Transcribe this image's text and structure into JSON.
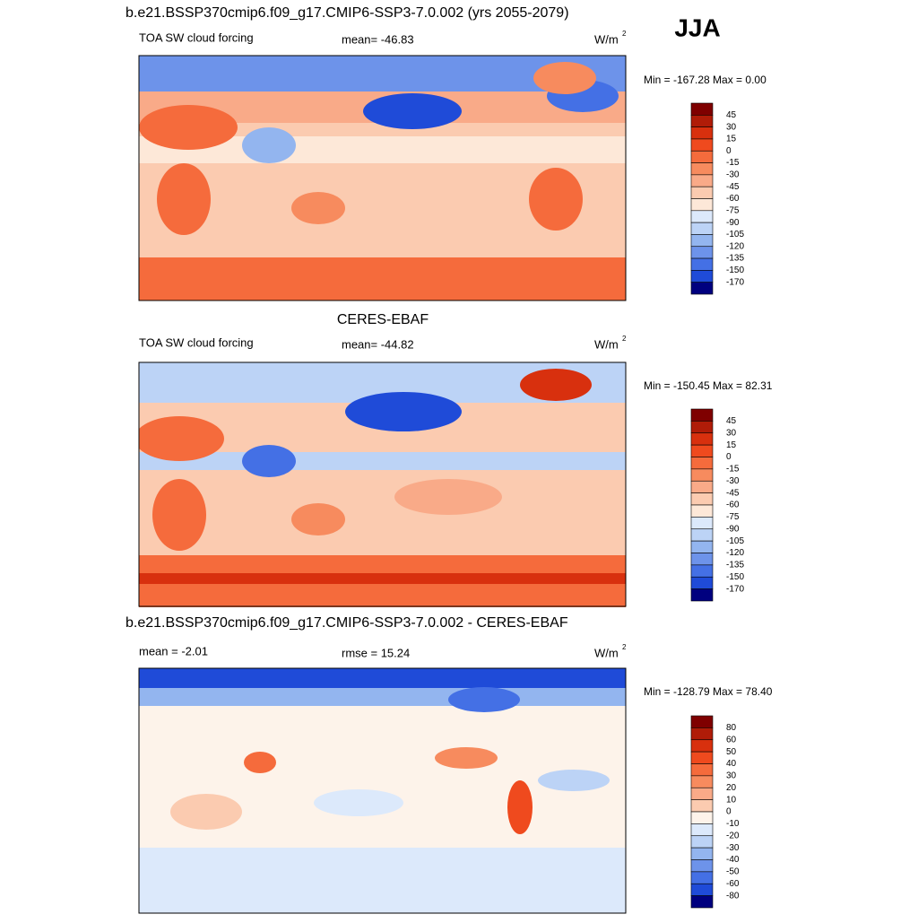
{
  "season": "JJA",
  "panels": [
    {
      "title": "b.e21.BSSP370cmip6.f09_g17.CMIP6-SSP3-7.0.002 (yrs 2055-2079)",
      "left_label": "TOA SW cloud forcing",
      "center_label": "mean= -46.83",
      "units": "W/m",
      "units_exp": "2",
      "minmax": "Min = -167.28 Max =   0.00",
      "colorbar": {
        "labels": [
          "45",
          "30",
          "15",
          "0",
          "-15",
          "-30",
          "-45",
          "-60",
          "-75",
          "-90",
          "-105",
          "-120",
          "-135",
          "-150",
          "-170"
        ],
        "colors": [
          "#7f0000",
          "#b01c08",
          "#d8300e",
          "#ef4a1e",
          "#f56b3c",
          "#f78b5e",
          "#f9aa88",
          "#fbcbb0",
          "#fde8d8",
          "#dce9fb",
          "#bcd3f6",
          "#93b5ef",
          "#6d93ea",
          "#4470e5",
          "#1f4bd8",
          "#00007f"
        ]
      }
    },
    {
      "title": "CERES-EBAF",
      "left_label": "TOA SW cloud forcing",
      "center_label": "mean= -44.82",
      "units": "W/m",
      "units_exp": "2",
      "minmax": "Min = -150.45 Max =  82.31",
      "colorbar": {
        "labels": [
          "45",
          "30",
          "15",
          "0",
          "-15",
          "-30",
          "-45",
          "-60",
          "-75",
          "-90",
          "-105",
          "-120",
          "-135",
          "-150",
          "-170"
        ],
        "colors": [
          "#7f0000",
          "#b01c08",
          "#d8300e",
          "#ef4a1e",
          "#f56b3c",
          "#f78b5e",
          "#f9aa88",
          "#fbcbb0",
          "#fde8d8",
          "#dce9fb",
          "#bcd3f6",
          "#93b5ef",
          "#6d93ea",
          "#4470e5",
          "#1f4bd8",
          "#00007f"
        ]
      }
    },
    {
      "title": "b.e21.BSSP370cmip6.f09_g17.CMIP6-SSP3-7.0.002 - CERES-EBAF",
      "left_label": "mean =  -2.01",
      "center_label": "rmse =  15.24",
      "units": "W/m",
      "units_exp": "2",
      "minmax": "Min = -128.79 Max =  78.40",
      "colorbar": {
        "labels": [
          "80",
          "60",
          "50",
          "40",
          "30",
          "20",
          "10",
          "0",
          "-10",
          "-20",
          "-30",
          "-40",
          "-50",
          "-60",
          "-80"
        ],
        "colors": [
          "#7f0000",
          "#b01c08",
          "#d8300e",
          "#ef4a1e",
          "#f56b3c",
          "#f78b5e",
          "#f9aa88",
          "#fbcbb0",
          "#fdf3ea",
          "#dce9fb",
          "#bcd3f6",
          "#93b5ef",
          "#6d93ea",
          "#4470e5",
          "#1f4bd8",
          "#00007f"
        ]
      }
    }
  ]
}
